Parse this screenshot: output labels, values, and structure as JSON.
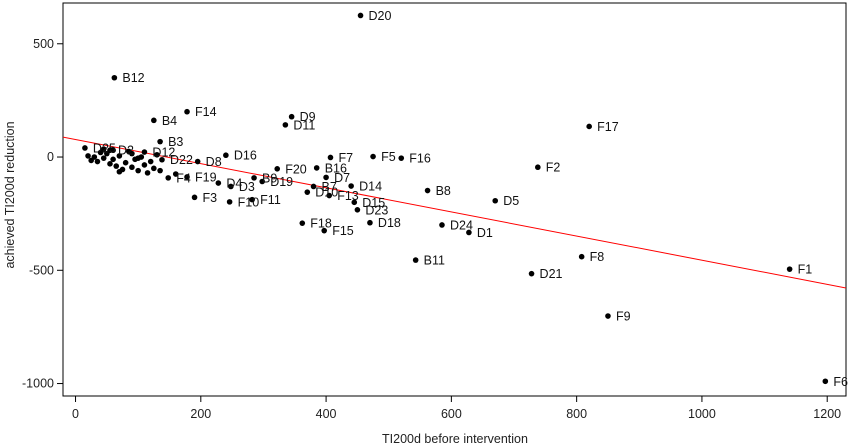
{
  "chart_data": {
    "type": "scatter",
    "xlabel": "TI200d before intervention",
    "ylabel": "achieved TI200d reduction",
    "xlim": [
      -20,
      1230
    ],
    "ylim": [
      -1055,
      680
    ],
    "x_ticks": [
      0,
      200,
      400,
      600,
      800,
      1000,
      1200
    ],
    "y_ticks": [
      -1000,
      -500,
      0,
      500
    ],
    "grid": false,
    "legend": "none",
    "colors": {
      "point": "#000000",
      "fit_line": "#ff0000",
      "frame": "#000000"
    },
    "fit_line": {
      "x": [
        -20,
        1230
      ],
      "y": [
        88,
        -578
      ]
    },
    "points": [
      {
        "label": "D20",
        "x": 455,
        "y": 625
      },
      {
        "label": "B12",
        "x": 62,
        "y": 350
      },
      {
        "label": "F14",
        "x": 178,
        "y": 200
      },
      {
        "label": "B4",
        "x": 125,
        "y": 162
      },
      {
        "label": "D9",
        "x": 345,
        "y": 178
      },
      {
        "label": "D11",
        "x": 335,
        "y": 142
      },
      {
        "label": "F17",
        "x": 820,
        "y": 135
      },
      {
        "label": "B3",
        "x": 135,
        "y": 68
      },
      {
        "label": "D25",
        "x": 15,
        "y": 40
      },
      {
        "label": "D2",
        "x": 55,
        "y": 30
      },
      {
        "label": "D12",
        "x": 110,
        "y": 22
      },
      {
        "label": "D16",
        "x": 240,
        "y": 8
      },
      {
        "label": "F7",
        "x": 407,
        "y": -2
      },
      {
        "label": "F5",
        "x": 475,
        "y": 2
      },
      {
        "label": "F16",
        "x": 520,
        "y": -5
      },
      {
        "label": "D8",
        "x": 195,
        "y": -20
      },
      {
        "label": "D22",
        "x": 138,
        "y": -12
      },
      {
        "label": "F20",
        "x": 322,
        "y": -52
      },
      {
        "label": "B16",
        "x": 385,
        "y": -48
      },
      {
        "label": "F2",
        "x": 738,
        "y": -45
      },
      {
        "label": "D7",
        "x": 400,
        "y": -90
      },
      {
        "label": "F19",
        "x": 178,
        "y": -88
      },
      {
        "label": "F4",
        "x": 148,
        "y": -92
      },
      {
        "label": "B9",
        "x": 285,
        "y": -92
      },
      {
        "label": "D19",
        "x": 298,
        "y": -108
      },
      {
        "label": "D4",
        "x": 228,
        "y": -115
      },
      {
        "label": "D3",
        "x": 248,
        "y": -130
      },
      {
        "label": "B7",
        "x": 380,
        "y": -130
      },
      {
        "label": "D14",
        "x": 440,
        "y": -128
      },
      {
        "label": "D10",
        "x": 370,
        "y": -155
      },
      {
        "label": "F13",
        "x": 405,
        "y": -170
      },
      {
        "label": "B8",
        "x": 562,
        "y": -148
      },
      {
        "label": "D5",
        "x": 670,
        "y": -193
      },
      {
        "label": "D15",
        "x": 445,
        "y": -200
      },
      {
        "label": "F3",
        "x": 190,
        "y": -178
      },
      {
        "label": "F10",
        "x": 246,
        "y": -198
      },
      {
        "label": "F11",
        "x": 282,
        "y": -188
      },
      {
        "label": "D23",
        "x": 450,
        "y": -233
      },
      {
        "label": "F18",
        "x": 362,
        "y": -292
      },
      {
        "label": "D18",
        "x": 470,
        "y": -290
      },
      {
        "label": "D24",
        "x": 585,
        "y": -300
      },
      {
        "label": "D1",
        "x": 628,
        "y": -333
      },
      {
        "label": "F15",
        "x": 397,
        "y": -325
      },
      {
        "label": "F8",
        "x": 808,
        "y": -440
      },
      {
        "label": "B11",
        "x": 543,
        "y": -455
      },
      {
        "label": "D21",
        "x": 728,
        "y": -515
      },
      {
        "label": "F1",
        "x": 1140,
        "y": -495
      },
      {
        "label": "F9",
        "x": 850,
        "y": -702
      },
      {
        "label": "F6",
        "x": 1197,
        "y": -990
      }
    ],
    "unlabeled_points": [
      {
        "x": 20,
        "y": 5
      },
      {
        "x": 25,
        "y": -15
      },
      {
        "x": 30,
        "y": 0
      },
      {
        "x": 35,
        "y": -20
      },
      {
        "x": 40,
        "y": 20
      },
      {
        "x": 45,
        "y": -5
      },
      {
        "x": 50,
        "y": 15
      },
      {
        "x": 55,
        "y": -30
      },
      {
        "x": 60,
        "y": -10
      },
      {
        "x": 65,
        "y": -40
      },
      {
        "x": 70,
        "y": 5
      },
      {
        "x": 75,
        "y": -55
      },
      {
        "x": 80,
        "y": -25
      },
      {
        "x": 85,
        "y": 25
      },
      {
        "x": 90,
        "y": -45
      },
      {
        "x": 95,
        "y": -10
      },
      {
        "x": 100,
        "y": -60
      },
      {
        "x": 105,
        "y": 0
      },
      {
        "x": 110,
        "y": -35
      },
      {
        "x": 115,
        "y": -70
      },
      {
        "x": 120,
        "y": -20
      },
      {
        "x": 125,
        "y": -50
      },
      {
        "x": 130,
        "y": 10
      },
      {
        "x": 70,
        "y": -65
      },
      {
        "x": 60,
        "y": 30
      },
      {
        "x": 45,
        "y": 35
      },
      {
        "x": 90,
        "y": 15
      },
      {
        "x": 100,
        "y": -5
      },
      {
        "x": 135,
        "y": -60
      },
      {
        "x": 160,
        "y": -75
      }
    ]
  }
}
